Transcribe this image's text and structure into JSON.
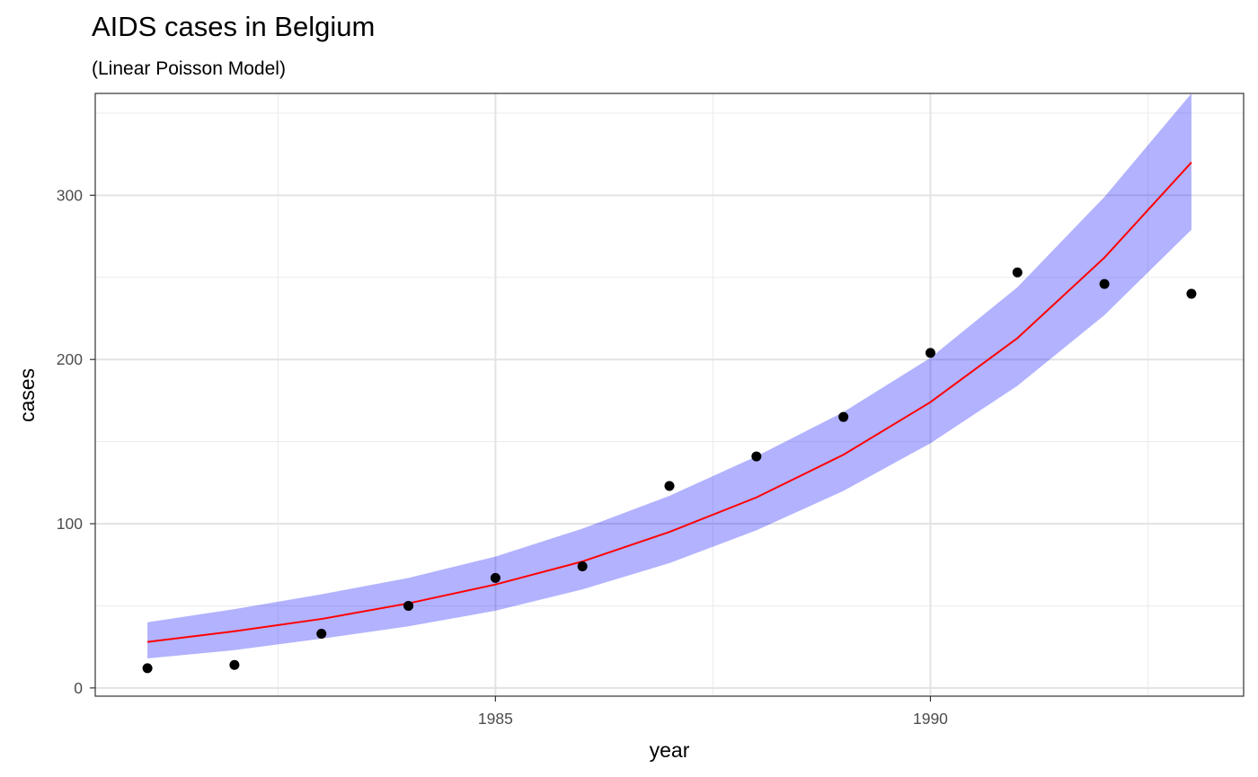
{
  "chart_data": {
    "type": "line",
    "title": "AIDS cases in Belgium",
    "subtitle": "(Linear Poisson Model)",
    "xlabel": "year",
    "ylabel": "cases",
    "xlim": [
      1980.4,
      1993.6
    ],
    "ylim": [
      -5,
      362
    ],
    "x_ticks": [
      1985,
      1990
    ],
    "x_minor_ticks": [
      1982.5,
      1987.5,
      1992.5
    ],
    "y_ticks": [
      0,
      100,
      200,
      300
    ],
    "y_minor_ticks": [
      50,
      150,
      250,
      350
    ],
    "grid": true,
    "colors": {
      "fit": "#ff0000",
      "ribbon": "#0000ff",
      "points": "#000000"
    },
    "observed": {
      "x": [
        1981,
        1982,
        1983,
        1984,
        1985,
        1986,
        1987,
        1988,
        1989,
        1990,
        1991,
        1992,
        1993
      ],
      "y": [
        12,
        14,
        33,
        50,
        67,
        74,
        123,
        141,
        165,
        204,
        253,
        246,
        240
      ]
    },
    "fit": {
      "x": [
        1981,
        1982,
        1983,
        1984,
        1985,
        1986,
        1987,
        1988,
        1989,
        1990,
        1991,
        1992,
        1993
      ],
      "y": [
        28,
        34.5,
        42,
        51.5,
        63,
        77,
        95,
        116,
        142,
        174,
        213,
        262,
        320
      ]
    },
    "ribbon": {
      "lower": [
        18,
        23,
        30,
        37.5,
        47,
        60,
        76,
        96,
        120,
        149,
        184,
        227,
        279
      ],
      "upper": [
        40,
        48,
        57,
        67,
        80,
        97,
        117,
        141,
        168,
        201,
        244,
        299,
        362
      ]
    }
  }
}
